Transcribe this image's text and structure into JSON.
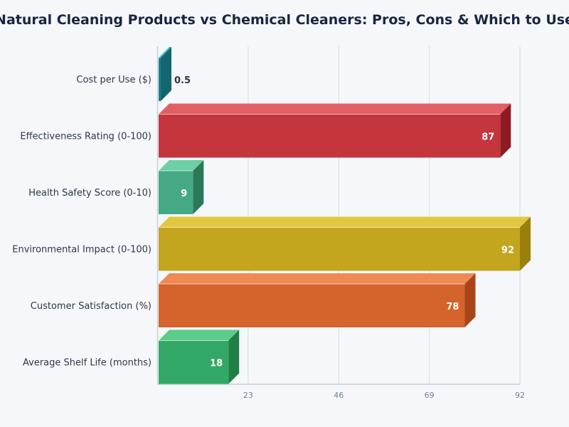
{
  "chart_data": {
    "type": "bar",
    "orientation": "horizontal",
    "title": "Natural Cleaning Products vs Chemical Cleaners: Pros, Cons & Which to Use",
    "categories": [
      "Cost per Use ($)",
      "Effectiveness Rating (0-100)",
      "Health Safety Score (0-10)",
      "Environmental Impact (0-100)",
      "Customer Satisfaction (%)",
      "Average Shelf Life (months)"
    ],
    "values": [
      0.5,
      87,
      9,
      92,
      78,
      18
    ],
    "value_labels": [
      "0.5",
      "87",
      "9",
      "92",
      "78",
      "18"
    ],
    "xlim": [
      0,
      92
    ],
    "xticks": [
      "23",
      "46",
      "69",
      "92"
    ],
    "grid": true,
    "colors": [
      {
        "front": "#1b7f8c",
        "top": "#3bbccc",
        "side": "#136570"
      },
      {
        "front": "#c4353d",
        "top": "#e06066",
        "side": "#8e1b22"
      },
      {
        "front": "#45a985",
        "top": "#6dcfa5",
        "side": "#2a7a5a"
      },
      {
        "front": "#c3a51e",
        "top": "#e2c840",
        "side": "#9a800a"
      },
      {
        "front": "#d4632c",
        "top": "#ef8a55",
        "side": "#a8461a"
      },
      {
        "front": "#33a866",
        "top": "#5ccc8a",
        "side": "#1f7f45"
      }
    ]
  }
}
